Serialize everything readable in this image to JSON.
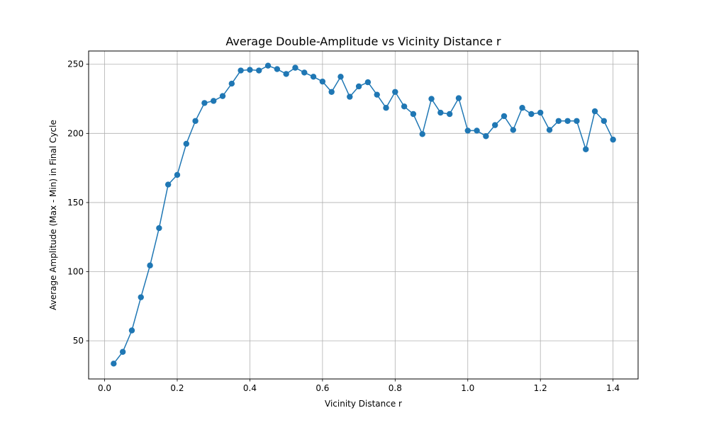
{
  "chart_data": {
    "type": "line",
    "title": "Average Double-Amplitude vs Vicinity Distance r",
    "xlabel": "Vicinity Distance r",
    "ylabel": "Average Amplitude (Max - Min) in Final Cycle",
    "xlim": [
      -0.044,
      1.469
    ],
    "ylim": [
      22.4,
      259.6
    ],
    "xticks": [
      0.0,
      0.2,
      0.4,
      0.6,
      0.8,
      1.0,
      1.2,
      1.4
    ],
    "xtick_labels": [
      "0.0",
      "0.2",
      "0.4",
      "0.6",
      "0.8",
      "1.0",
      "1.2",
      "1.4"
    ],
    "yticks": [
      50,
      100,
      150,
      200,
      250
    ],
    "ytick_labels": [
      "50",
      "100",
      "150",
      "200",
      "250"
    ],
    "grid": true,
    "marker": "circle",
    "color": "#1f77b4",
    "series": [
      {
        "x": [
          0.025,
          0.05,
          0.075,
          0.1,
          0.125,
          0.15,
          0.175,
          0.2,
          0.225,
          0.25,
          0.275,
          0.3,
          0.325,
          0.35,
          0.375,
          0.4,
          0.425,
          0.45,
          0.475,
          0.5,
          0.525,
          0.55,
          0.575,
          0.6,
          0.625,
          0.65,
          0.675,
          0.7,
          0.725,
          0.75,
          0.775,
          0.8,
          0.825,
          0.85,
          0.875,
          0.9,
          0.925,
          0.95,
          0.975,
          1.0,
          1.025,
          1.05,
          1.075,
          1.1,
          1.125,
          1.15,
          1.175,
          1.2,
          1.225,
          1.25,
          1.275,
          1.3,
          1.325,
          1.35,
          1.375,
          1.4
        ],
        "values": [
          33.5,
          42.0,
          57.5,
          81.5,
          104.5,
          131.5,
          163.0,
          170.0,
          192.5,
          209.0,
          222.0,
          223.5,
          227.0,
          236.0,
          245.5,
          246.0,
          245.5,
          249.0,
          246.5,
          243.0,
          247.5,
          244.0,
          241.0,
          237.5,
          230.0,
          241.0,
          226.5,
          234.0,
          237.0,
          228.0,
          218.5,
          230.0,
          219.5,
          214.0,
          199.5,
          225.0,
          215.0,
          214.0,
          225.5,
          202.0,
          202.0,
          198.0,
          206.0,
          212.5,
          202.5,
          218.5,
          214.0,
          215.0,
          202.5,
          209.0,
          209.0,
          209.0,
          188.5,
          216.0,
          209.0,
          195.5
        ]
      }
    ]
  }
}
